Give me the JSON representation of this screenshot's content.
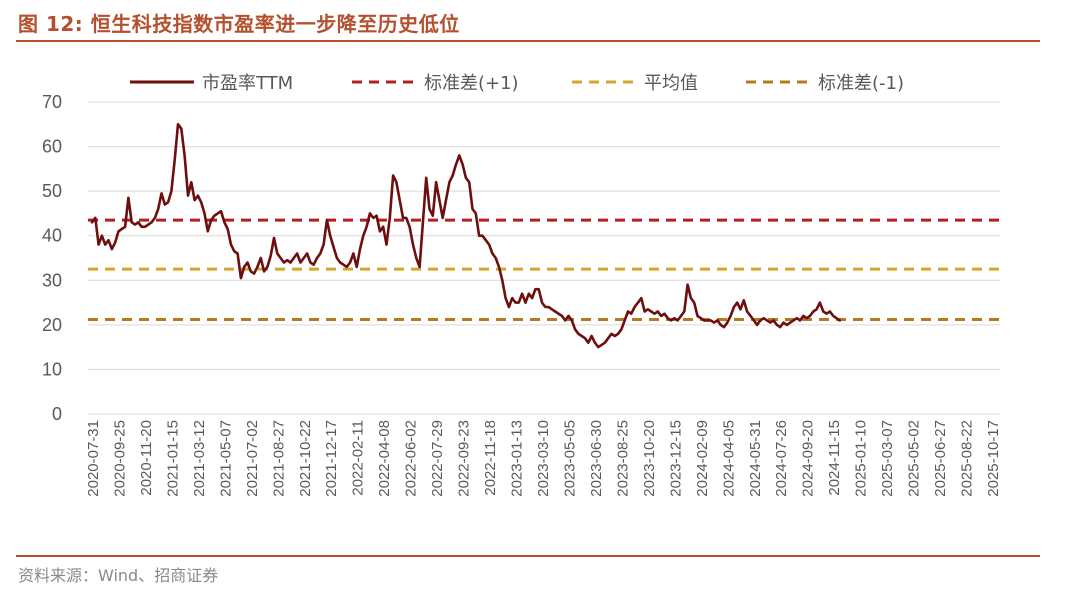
{
  "title": "图 12:  恒生科技指数市盈率进一步降至历史低位",
  "source": "资料来源：Wind、招商证券",
  "colors": {
    "accent": "#b4502d",
    "pe_line": "#6e0f0f",
    "std_plus": "#b3201f",
    "mean": "#d4a72c",
    "std_minus": "#b7791f",
    "grid": "#d9d9d9"
  },
  "chart_data": {
    "type": "line",
    "title": "",
    "xlabel": "",
    "ylabel": "",
    "ylim": [
      0,
      70
    ],
    "yticks": [
      0,
      10,
      20,
      30,
      40,
      50,
      60,
      70
    ],
    "grid": "horizontal",
    "legend_position": "top",
    "x_ticks": [
      "2020-07-31",
      "2020-09-25",
      "2020-11-20",
      "2021-01-15",
      "2021-03-12",
      "2021-05-07",
      "2021-07-02",
      "2021-08-27",
      "2021-10-22",
      "2021-12-17",
      "2022-02-11",
      "2022-04-08",
      "2022-06-02",
      "2022-07-29",
      "2022-09-23",
      "2022-11-18",
      "2023-01-13",
      "2023-03-10",
      "2023-05-05",
      "2023-06-30",
      "2023-08-25",
      "2023-10-20",
      "2023-12-15",
      "2024-02-09",
      "2024-04-05",
      "2024-05-31",
      "2024-07-26",
      "2024-09-20",
      "2024-11-15",
      "2025-01-10",
      "2025-03-07",
      "2025-05-02",
      "2025-06-27",
      "2025-08-22",
      "2025-10-17"
    ],
    "reference_lines": [
      {
        "name": "标准差(+1)",
        "value": 43.5,
        "style": "dashed"
      },
      {
        "name": "平均值",
        "value": 32.5,
        "style": "dashed"
      },
      {
        "name": "标准差(-1)",
        "value": 21.2,
        "style": "dashed"
      }
    ],
    "series": [
      {
        "name": "市盈率TTM",
        "style": "solid",
        "points": [
          [
            "2020-07-31",
            43
          ],
          [
            "2020-08-07",
            44
          ],
          [
            "2020-08-14",
            38
          ],
          [
            "2020-08-21",
            40
          ],
          [
            "2020-08-28",
            38
          ],
          [
            "2020-09-04",
            39
          ],
          [
            "2020-09-11",
            37
          ],
          [
            "2020-09-18",
            38.5
          ],
          [
            "2020-09-25",
            41
          ],
          [
            "2020-10-02",
            41.5
          ],
          [
            "2020-10-09",
            42
          ],
          [
            "2020-10-16",
            48.5
          ],
          [
            "2020-10-23",
            43
          ],
          [
            "2020-10-30",
            42.5
          ],
          [
            "2020-11-06",
            43
          ],
          [
            "2020-11-13",
            42
          ],
          [
            "2020-11-20",
            42
          ],
          [
            "2020-11-27",
            42.5
          ],
          [
            "2020-12-04",
            43
          ],
          [
            "2020-12-11",
            44
          ],
          [
            "2020-12-18",
            46
          ],
          [
            "2020-12-25",
            49.5
          ],
          [
            "2021-01-01",
            47
          ],
          [
            "2021-01-08",
            47.5
          ],
          [
            "2021-01-15",
            50
          ],
          [
            "2021-01-22",
            57
          ],
          [
            "2021-01-29",
            65
          ],
          [
            "2021-02-05",
            64
          ],
          [
            "2021-02-12",
            58
          ],
          [
            "2021-02-19",
            49
          ],
          [
            "2021-02-26",
            52
          ],
          [
            "2021-03-05",
            48
          ],
          [
            "2021-03-12",
            49
          ],
          [
            "2021-03-19",
            47.5
          ],
          [
            "2021-03-26",
            45
          ],
          [
            "2021-04-02",
            41
          ],
          [
            "2021-04-09",
            43.5
          ],
          [
            "2021-04-16",
            44.5
          ],
          [
            "2021-04-23",
            45
          ],
          [
            "2021-04-30",
            45.5
          ],
          [
            "2021-05-07",
            43
          ],
          [
            "2021-05-14",
            41.5
          ],
          [
            "2021-05-21",
            38
          ],
          [
            "2021-05-28",
            36.5
          ],
          [
            "2021-06-04",
            36
          ],
          [
            "2021-06-11",
            30.5
          ],
          [
            "2021-06-18",
            33
          ],
          [
            "2021-06-25",
            34
          ],
          [
            "2021-07-02",
            32
          ],
          [
            "2021-07-09",
            31.5
          ],
          [
            "2021-07-16",
            33
          ],
          [
            "2021-07-23",
            35
          ],
          [
            "2021-07-30",
            32
          ],
          [
            "2021-08-06",
            33
          ],
          [
            "2021-08-13",
            35.5
          ],
          [
            "2021-08-20",
            39.5
          ],
          [
            "2021-08-27",
            36
          ],
          [
            "2021-09-03",
            35
          ],
          [
            "2021-09-10",
            34
          ],
          [
            "2021-09-17",
            34.5
          ],
          [
            "2021-09-24",
            34
          ],
          [
            "2021-10-01",
            35
          ],
          [
            "2021-10-08",
            36
          ],
          [
            "2021-10-15",
            34
          ],
          [
            "2021-10-22",
            35
          ],
          [
            "2021-10-29",
            36
          ],
          [
            "2021-11-05",
            34
          ],
          [
            "2021-11-12",
            33.5
          ],
          [
            "2021-11-19",
            35
          ],
          [
            "2021-11-26",
            36
          ],
          [
            "2021-12-03",
            38
          ],
          [
            "2021-12-10",
            43.5
          ],
          [
            "2021-12-17",
            40
          ],
          [
            "2021-12-24",
            37.5
          ],
          [
            "2021-12-31",
            35
          ],
          [
            "2022-01-07",
            34
          ],
          [
            "2022-01-14",
            33.5
          ],
          [
            "2022-01-21",
            33
          ],
          [
            "2022-01-28",
            34
          ],
          [
            "2022-02-04",
            36
          ],
          [
            "2022-02-11",
            33
          ],
          [
            "2022-02-18",
            37
          ],
          [
            "2022-02-25",
            40
          ],
          [
            "2022-03-04",
            42
          ],
          [
            "2022-03-11",
            45
          ],
          [
            "2022-03-18",
            44
          ],
          [
            "2022-03-25",
            44.5
          ],
          [
            "2022-04-01",
            41
          ],
          [
            "2022-04-08",
            42
          ],
          [
            "2022-04-15",
            38
          ],
          [
            "2022-04-22",
            44
          ],
          [
            "2022-04-29",
            53.5
          ],
          [
            "2022-05-06",
            52
          ],
          [
            "2022-05-13",
            48
          ],
          [
            "2022-05-20",
            44
          ],
          [
            "2022-05-27",
            44
          ],
          [
            "2022-06-03",
            42
          ],
          [
            "2022-06-10",
            38
          ],
          [
            "2022-06-17",
            35
          ],
          [
            "2022-06-24",
            33
          ],
          [
            "2022-07-01",
            43
          ],
          [
            "2022-07-08",
            53
          ],
          [
            "2022-07-15",
            46
          ],
          [
            "2022-07-22",
            44.5
          ],
          [
            "2022-07-29",
            52
          ],
          [
            "2022-08-05",
            48
          ],
          [
            "2022-08-12",
            44
          ],
          [
            "2022-08-19",
            48
          ],
          [
            "2022-08-26",
            52
          ],
          [
            "2022-09-02",
            53.5
          ],
          [
            "2022-09-09",
            56
          ],
          [
            "2022-09-16",
            58
          ],
          [
            "2022-09-23",
            56
          ],
          [
            "2022-09-30",
            53
          ],
          [
            "2022-10-07",
            52
          ],
          [
            "2022-10-14",
            46
          ],
          [
            "2022-10-21",
            45
          ],
          [
            "2022-10-28",
            40
          ],
          [
            "2022-11-04",
            40
          ],
          [
            "2022-11-11",
            39
          ],
          [
            "2022-11-18",
            38
          ],
          [
            "2022-11-25",
            36
          ],
          [
            "2022-12-02",
            35
          ],
          [
            "2022-12-09",
            33
          ],
          [
            "2022-12-16",
            30
          ],
          [
            "2022-12-23",
            26
          ],
          [
            "2022-12-30",
            24
          ],
          [
            "2023-01-06",
            26
          ],
          [
            "2023-01-13",
            25
          ],
          [
            "2023-01-20",
            25
          ],
          [
            "2023-01-27",
            27
          ],
          [
            "2023-02-03",
            25
          ],
          [
            "2023-02-10",
            27
          ],
          [
            "2023-02-17",
            26
          ],
          [
            "2023-02-24",
            28
          ],
          [
            "2023-03-03",
            28
          ],
          [
            "2023-03-10",
            25
          ],
          [
            "2023-03-17",
            24
          ],
          [
            "2023-03-24",
            24
          ],
          [
            "2023-03-31",
            23.5
          ],
          [
            "2023-04-07",
            23
          ],
          [
            "2023-04-14",
            22.5
          ],
          [
            "2023-04-21",
            22
          ],
          [
            "2023-04-28",
            21
          ],
          [
            "2023-05-05",
            22
          ],
          [
            "2023-05-12",
            21
          ],
          [
            "2023-05-19",
            19
          ],
          [
            "2023-05-26",
            18
          ],
          [
            "2023-06-02",
            17.5
          ],
          [
            "2023-06-09",
            17
          ],
          [
            "2023-06-16",
            16
          ],
          [
            "2023-06-23",
            17.5
          ],
          [
            "2023-06-30",
            16
          ],
          [
            "2023-07-07",
            15
          ],
          [
            "2023-07-14",
            15.5
          ],
          [
            "2023-07-21",
            16
          ],
          [
            "2023-07-28",
            17
          ],
          [
            "2023-08-04",
            18
          ],
          [
            "2023-08-11",
            17.5
          ],
          [
            "2023-08-18",
            18
          ],
          [
            "2023-08-25",
            19
          ],
          [
            "2023-09-01",
            21
          ],
          [
            "2023-09-08",
            23
          ],
          [
            "2023-09-15",
            22.5
          ],
          [
            "2023-09-22",
            24
          ],
          [
            "2023-09-29",
            25
          ],
          [
            "2023-10-06",
            26
          ],
          [
            "2023-10-13",
            23
          ],
          [
            "2023-10-20",
            23.5
          ],
          [
            "2023-10-27",
            23
          ],
          [
            "2023-11-03",
            22.5
          ],
          [
            "2023-11-10",
            23
          ],
          [
            "2023-11-17",
            22
          ],
          [
            "2023-11-24",
            22.5
          ],
          [
            "2023-12-01",
            21.5
          ],
          [
            "2023-12-08",
            21
          ],
          [
            "2023-12-15",
            21.5
          ],
          [
            "2023-12-22",
            21
          ],
          [
            "2023-12-29",
            22
          ],
          [
            "2024-01-05",
            23
          ],
          [
            "2024-01-12",
            29
          ],
          [
            "2024-01-19",
            26
          ],
          [
            "2024-01-26",
            25
          ],
          [
            "2024-02-02",
            22
          ],
          [
            "2024-02-09",
            21.5
          ],
          [
            "2024-02-16",
            21
          ],
          [
            "2024-02-23",
            21
          ],
          [
            "2024-03-01",
            21
          ],
          [
            "2024-03-08",
            20.5
          ],
          [
            "2024-03-15",
            21
          ],
          [
            "2024-03-22",
            20
          ],
          [
            "2024-03-29",
            19.5
          ],
          [
            "2024-04-05",
            20.5
          ],
          [
            "2024-04-12",
            22
          ],
          [
            "2024-04-19",
            24
          ],
          [
            "2024-04-26",
            25
          ],
          [
            "2024-05-03",
            23.5
          ],
          [
            "2024-05-10",
            25.5
          ],
          [
            "2024-05-17",
            23
          ],
          [
            "2024-05-24",
            22
          ],
          [
            "2024-05-31",
            21
          ],
          [
            "2024-06-07",
            20
          ],
          [
            "2024-06-14",
            21
          ],
          [
            "2024-06-21",
            21.5
          ],
          [
            "2024-06-28",
            21
          ],
          [
            "2024-07-05",
            20.5
          ],
          [
            "2024-07-12",
            21
          ],
          [
            "2024-07-19",
            20
          ],
          [
            "2024-07-26",
            19.5
          ],
          [
            "2024-08-02",
            20.5
          ],
          [
            "2024-08-09",
            20
          ],
          [
            "2024-08-16",
            20.5
          ],
          [
            "2024-08-23",
            21
          ],
          [
            "2024-08-30",
            21.5
          ],
          [
            "2024-09-06",
            21
          ],
          [
            "2024-09-13",
            22
          ],
          [
            "2024-09-20",
            21.5
          ],
          [
            "2024-09-27",
            22
          ],
          [
            "2024-10-04",
            23
          ],
          [
            "2024-10-11",
            23.5
          ],
          [
            "2024-10-18",
            25
          ],
          [
            "2024-10-25",
            23
          ],
          [
            "2024-11-01",
            22.5
          ],
          [
            "2024-11-08",
            23
          ],
          [
            "2024-11-15",
            22
          ],
          [
            "2024-11-22",
            21.5
          ],
          [
            "2024-11-29",
            21
          ]
        ]
      }
    ]
  }
}
